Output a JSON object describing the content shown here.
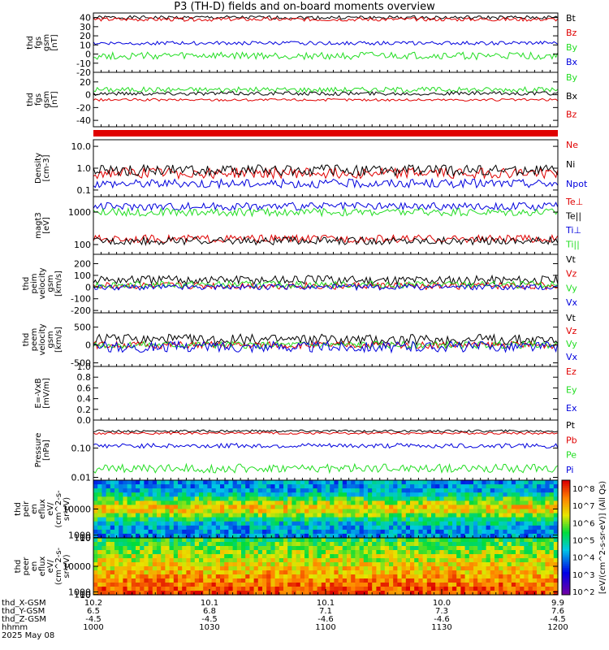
{
  "title": "P3 (TH-D) fields and on-board moments overview",
  "colors": {
    "black": "#000000",
    "red": "#e00000",
    "green": "#22dd22",
    "blue": "#0000dd"
  },
  "chart_data": [
    {
      "type": "line",
      "ylabel": [
        "thd",
        "fgs",
        "gsm",
        "[nT]"
      ],
      "ylim": [
        -20,
        45
      ],
      "ticks": [
        {
          "v": 40,
          "t": "40"
        },
        {
          "v": 30,
          "t": "30"
        },
        {
          "v": 20,
          "t": "20"
        },
        {
          "v": 10,
          "t": "10"
        },
        {
          "v": 0,
          "t": "0"
        },
        {
          "v": -10,
          "t": "-10"
        },
        {
          "v": -20,
          "t": "-20"
        }
      ],
      "series": [
        {
          "name": "Bt",
          "color": "black",
          "base": 40,
          "noise": 2
        },
        {
          "name": "Bz",
          "color": "red",
          "base": 38,
          "noise": 2
        },
        {
          "name": "By",
          "color": "green",
          "base": -2,
          "noise": 4
        },
        {
          "name": "Bx",
          "color": "blue",
          "base": 12,
          "noise": 2
        }
      ]
    },
    {
      "type": "line",
      "ylabel": [
        "thd",
        "fgs",
        "gsm",
        "[nT]"
      ],
      "ylim": [
        -50,
        35
      ],
      "ticks": [
        {
          "v": 20,
          "t": "20"
        },
        {
          "v": 0,
          "t": "0"
        },
        {
          "v": -20,
          "t": "-20"
        },
        {
          "v": -40,
          "t": "-40"
        }
      ],
      "series": [
        {
          "name": "By",
          "color": "green",
          "base": 8,
          "noise": 4
        },
        {
          "name": "Bx",
          "color": "black",
          "base": 2,
          "noise": 3
        },
        {
          "name": "Bz",
          "color": "red",
          "base": -8,
          "noise": 2
        }
      ]
    },
    {
      "type": "flag",
      "color": "red"
    },
    {
      "type": "line",
      "log": true,
      "ylabel": [
        "Density",
        "[cm-3]"
      ],
      "ylim": [
        0.05,
        20
      ],
      "ticks": [
        {
          "v": 10,
          "t": "10.0"
        },
        {
          "v": 1,
          "t": "1.0"
        },
        {
          "v": 0.1,
          "t": "0.1"
        }
      ],
      "series": [
        {
          "name": "Ne",
          "color": "red",
          "base": 0.6,
          "noise": 0.25
        },
        {
          "name": "Ni",
          "color": "black",
          "base": 0.8,
          "noise": 0.25
        },
        {
          "name": "Npot",
          "color": "blue",
          "base": 0.2,
          "noise": 0.2
        }
      ]
    },
    {
      "type": "line",
      "log": true,
      "ylabel": [
        "magt3",
        "[eV]"
      ],
      "ylim": [
        50,
        3000
      ],
      "ticks": [
        {
          "v": 1000,
          "t": "1000"
        },
        {
          "v": 100,
          "t": "100"
        }
      ],
      "series": [
        {
          "name": "Te⊥",
          "color": "red",
          "base": 150,
          "noise": 0.12
        },
        {
          "name": "Te||",
          "color": "black",
          "base": 130,
          "noise": 0.12
        },
        {
          "name": "Ti⊥",
          "color": "blue",
          "base": 1500,
          "noise": 0.12
        },
        {
          "name": "Ti||",
          "color": "green",
          "base": 1000,
          "noise": 0.12
        }
      ]
    },
    {
      "type": "line",
      "ylabel": [
        "thd",
        "peim",
        "velocity",
        "gsm",
        "[km/s]"
      ],
      "ylim": [
        -220,
        280
      ],
      "ticks": [
        {
          "v": 200,
          "t": "200"
        },
        {
          "v": 100,
          "t": "100"
        },
        {
          "v": 0,
          "t": "0"
        },
        {
          "v": -100,
          "t": "-100"
        },
        {
          "v": -200,
          "t": "-200"
        }
      ],
      "series": [
        {
          "name": "Vt",
          "color": "black",
          "base": 60,
          "noise": 40
        },
        {
          "name": "Vz",
          "color": "red",
          "base": 10,
          "noise": 30
        },
        {
          "name": "Vy",
          "color": "green",
          "base": 20,
          "noise": 30
        },
        {
          "name": "Vx",
          "color": "blue",
          "base": 0,
          "noise": 25
        }
      ]
    },
    {
      "type": "line",
      "ylabel": [
        "thd",
        "peem",
        "velocity",
        "gsm",
        "[km/s]"
      ],
      "ylim": [
        -600,
        900
      ],
      "ticks": [
        {
          "v": 500,
          "t": "500"
        },
        {
          "v": 0,
          "t": "0"
        },
        {
          "v": -500,
          "t": "-500"
        }
      ],
      "series": [
        {
          "name": "Vt",
          "color": "black",
          "base": 150,
          "noise": 150
        },
        {
          "name": "Vz",
          "color": "red",
          "base": 0,
          "noise": 100
        },
        {
          "name": "Vy",
          "color": "green",
          "base": 0,
          "noise": 100
        },
        {
          "name": "Vx",
          "color": "blue",
          "base": -50,
          "noise": 150
        }
      ]
    },
    {
      "type": "empty",
      "ylabel": [
        "E=-VxB",
        "[mV/m]"
      ],
      "ylim": [
        0,
        1
      ],
      "ticks": [
        {
          "v": 1,
          "t": "1.0"
        },
        {
          "v": 0.8,
          "t": "0.8"
        },
        {
          "v": 0.6,
          "t": "0.6"
        },
        {
          "v": 0.4,
          "t": "0.4"
        },
        {
          "v": 0.2,
          "t": "0.2"
        },
        {
          "v": 0,
          "t": "0.0"
        }
      ],
      "series": [
        {
          "name": "Ez",
          "color": "red"
        },
        {
          "name": "Ey",
          "color": "green"
        },
        {
          "name": "Ex",
          "color": "blue"
        }
      ]
    },
    {
      "type": "line",
      "log": true,
      "ylabel": [
        "Pressure",
        "[nPa]"
      ],
      "ylim": [
        0.008,
        0.9
      ],
      "ticks": [
        {
          "v": 0.1,
          "t": "0.10"
        },
        {
          "v": 0.01,
          "t": "0.01"
        }
      ],
      "series": [
        {
          "name": "Pt",
          "color": "black",
          "base": 0.38,
          "noise": 0.04
        },
        {
          "name": "Pb",
          "color": "red",
          "base": 0.32,
          "noise": 0.04
        },
        {
          "name": "Pe",
          "color": "green",
          "base": 0.02,
          "noise": 0.15
        },
        {
          "name": "Pi",
          "color": "blue",
          "base": 0.12,
          "noise": 0.08
        }
      ]
    },
    {
      "type": "heatmap",
      "ylabel": [
        "thd",
        "peir",
        "en",
        "eflux",
        "eV/",
        "(cm^2-s-",
        "sr-eV)"
      ],
      "ylim": [
        5,
        20000
      ],
      "ticks": [
        {
          "v": 10000,
          "t": "10000"
        },
        {
          "v": 1000,
          "t": "1000"
        },
        {
          "v": 100,
          "t": "100"
        },
        {
          "v": 10,
          "t": "10"
        }
      ]
    },
    {
      "type": "heatmap",
      "ylabel": [
        "thd",
        "peer",
        "en",
        "eflux",
        "eV/",
        "(cm^2-s-",
        "sr-eV)"
      ],
      "ylim": [
        5,
        20000
      ],
      "ticks": [
        {
          "v": 10000,
          "t": "10000"
        },
        {
          "v": 1000,
          "t": "1000"
        },
        {
          "v": 100,
          "t": "100"
        },
        {
          "v": 10,
          "t": "10"
        }
      ]
    }
  ],
  "colorbar": {
    "label": "[eV/(cm^2-s-sr-eV)] (All Qs)",
    "ticks": [
      "10^8",
      "10^7",
      "10^6",
      "10^5",
      "10^4",
      "10^3",
      "10^2"
    ]
  },
  "xaxis": {
    "rows": [
      {
        "label": "thd_X-GSM",
        "values": [
          "10.2",
          "10.1",
          "10.1",
          "10.0",
          "9.9"
        ]
      },
      {
        "label": "thd_Y-GSM",
        "values": [
          "6.5",
          "6.8",
          "7.1",
          "7.3",
          "7.6"
        ]
      },
      {
        "label": "thd_Z-GSM",
        "values": [
          "-4.5",
          "-4.5",
          "-4.6",
          "-4.6",
          "-4.5"
        ]
      },
      {
        "label": "hhmm",
        "values": [
          "1000",
          "1030",
          "1100",
          "1130",
          "1200"
        ]
      }
    ],
    "date": "2025 May 08"
  }
}
